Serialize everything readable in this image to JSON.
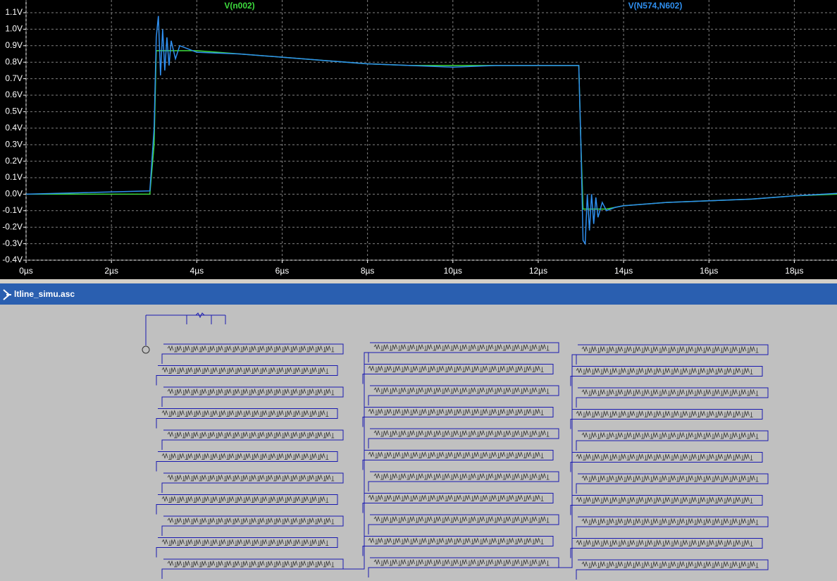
{
  "window": {
    "title": "ltline_simu.asc"
  },
  "chart_data": {
    "type": "line",
    "x": [
      0,
      2.9,
      3.0,
      3.05,
      3.1,
      3.15,
      3.2,
      3.25,
      3.3,
      3.35,
      3.4,
      3.5,
      3.6,
      3.8,
      4,
      5,
      6,
      7,
      8,
      9,
      10,
      11,
      12,
      12.95,
      13.0,
      13.05,
      13.1,
      13.15,
      13.2,
      13.25,
      13.3,
      13.35,
      13.4,
      13.5,
      13.6,
      13.8,
      14,
      15,
      16,
      17,
      18,
      19
    ],
    "series": [
      {
        "name": "V(n002)",
        "color": "#3ddc3d",
        "values": [
          0,
          0,
          0.3,
          0.87,
          0.87,
          0.87,
          0.87,
          0.87,
          0.87,
          0.87,
          0.87,
          0.87,
          0.87,
          0.87,
          0.87,
          0.85,
          0.83,
          0.81,
          0.79,
          0.78,
          0.78,
          0.78,
          0.78,
          0.78,
          0.3,
          -0.09,
          -0.09,
          -0.09,
          -0.09,
          -0.09,
          -0.09,
          -0.09,
          -0.09,
          -0.09,
          -0.09,
          -0.08,
          -0.07,
          -0.05,
          -0.04,
          -0.03,
          -0.01,
          0.0
        ]
      },
      {
        "name": "V(N574,N602)",
        "color": "#2f8fef",
        "values": [
          0,
          0.02,
          0.4,
          0.95,
          1.08,
          0.72,
          1.0,
          0.75,
          0.95,
          0.78,
          0.93,
          0.82,
          0.9,
          0.88,
          0.86,
          0.85,
          0.83,
          0.81,
          0.79,
          0.78,
          0.77,
          0.78,
          0.78,
          0.78,
          0.3,
          -0.28,
          -0.3,
          0.0,
          -0.22,
          0.0,
          -0.18,
          -0.02,
          -0.14,
          -0.05,
          -0.1,
          -0.08,
          -0.07,
          -0.05,
          -0.04,
          -0.03,
          -0.01,
          0.005
        ]
      }
    ],
    "xlim": [
      0,
      19
    ],
    "xticks": [
      {
        "value": 0,
        "label": "0µs"
      },
      {
        "value": 2,
        "label": "2µs"
      },
      {
        "value": 4,
        "label": "4µs"
      },
      {
        "value": 6,
        "label": "6µs"
      },
      {
        "value": 8,
        "label": "8µs"
      },
      {
        "value": 10,
        "label": "10µs"
      },
      {
        "value": 12,
        "label": "12µs"
      },
      {
        "value": 14,
        "label": "14µs"
      },
      {
        "value": 16,
        "label": "16µs"
      },
      {
        "value": 18,
        "label": "18µs"
      }
    ],
    "ylim": [
      -0.4,
      1.1
    ],
    "yticks": [
      {
        "value": -0.4,
        "label": "-0.4V"
      },
      {
        "value": -0.3,
        "label": "-0.3V"
      },
      {
        "value": -0.2,
        "label": "-0.2V"
      },
      {
        "value": -0.1,
        "label": "-0.1V"
      },
      {
        "value": 0,
        "label": "0.0V"
      },
      {
        "value": 0.1,
        "label": "0.1V"
      },
      {
        "value": 0.2,
        "label": "0.2V"
      },
      {
        "value": 0.3,
        "label": "0.3V"
      },
      {
        "value": 0.4,
        "label": "0.4V"
      },
      {
        "value": 0.5,
        "label": "0.5V"
      },
      {
        "value": 0.6,
        "label": "0.6V"
      },
      {
        "value": 0.7,
        "label": "0.7V"
      },
      {
        "value": 0.8,
        "label": "0.8V"
      },
      {
        "value": 0.9,
        "label": "0.9V"
      },
      {
        "value": 1.0,
        "label": "1.0V"
      },
      {
        "value": 1.1,
        "label": "1.1V"
      }
    ],
    "grid": true
  }
}
